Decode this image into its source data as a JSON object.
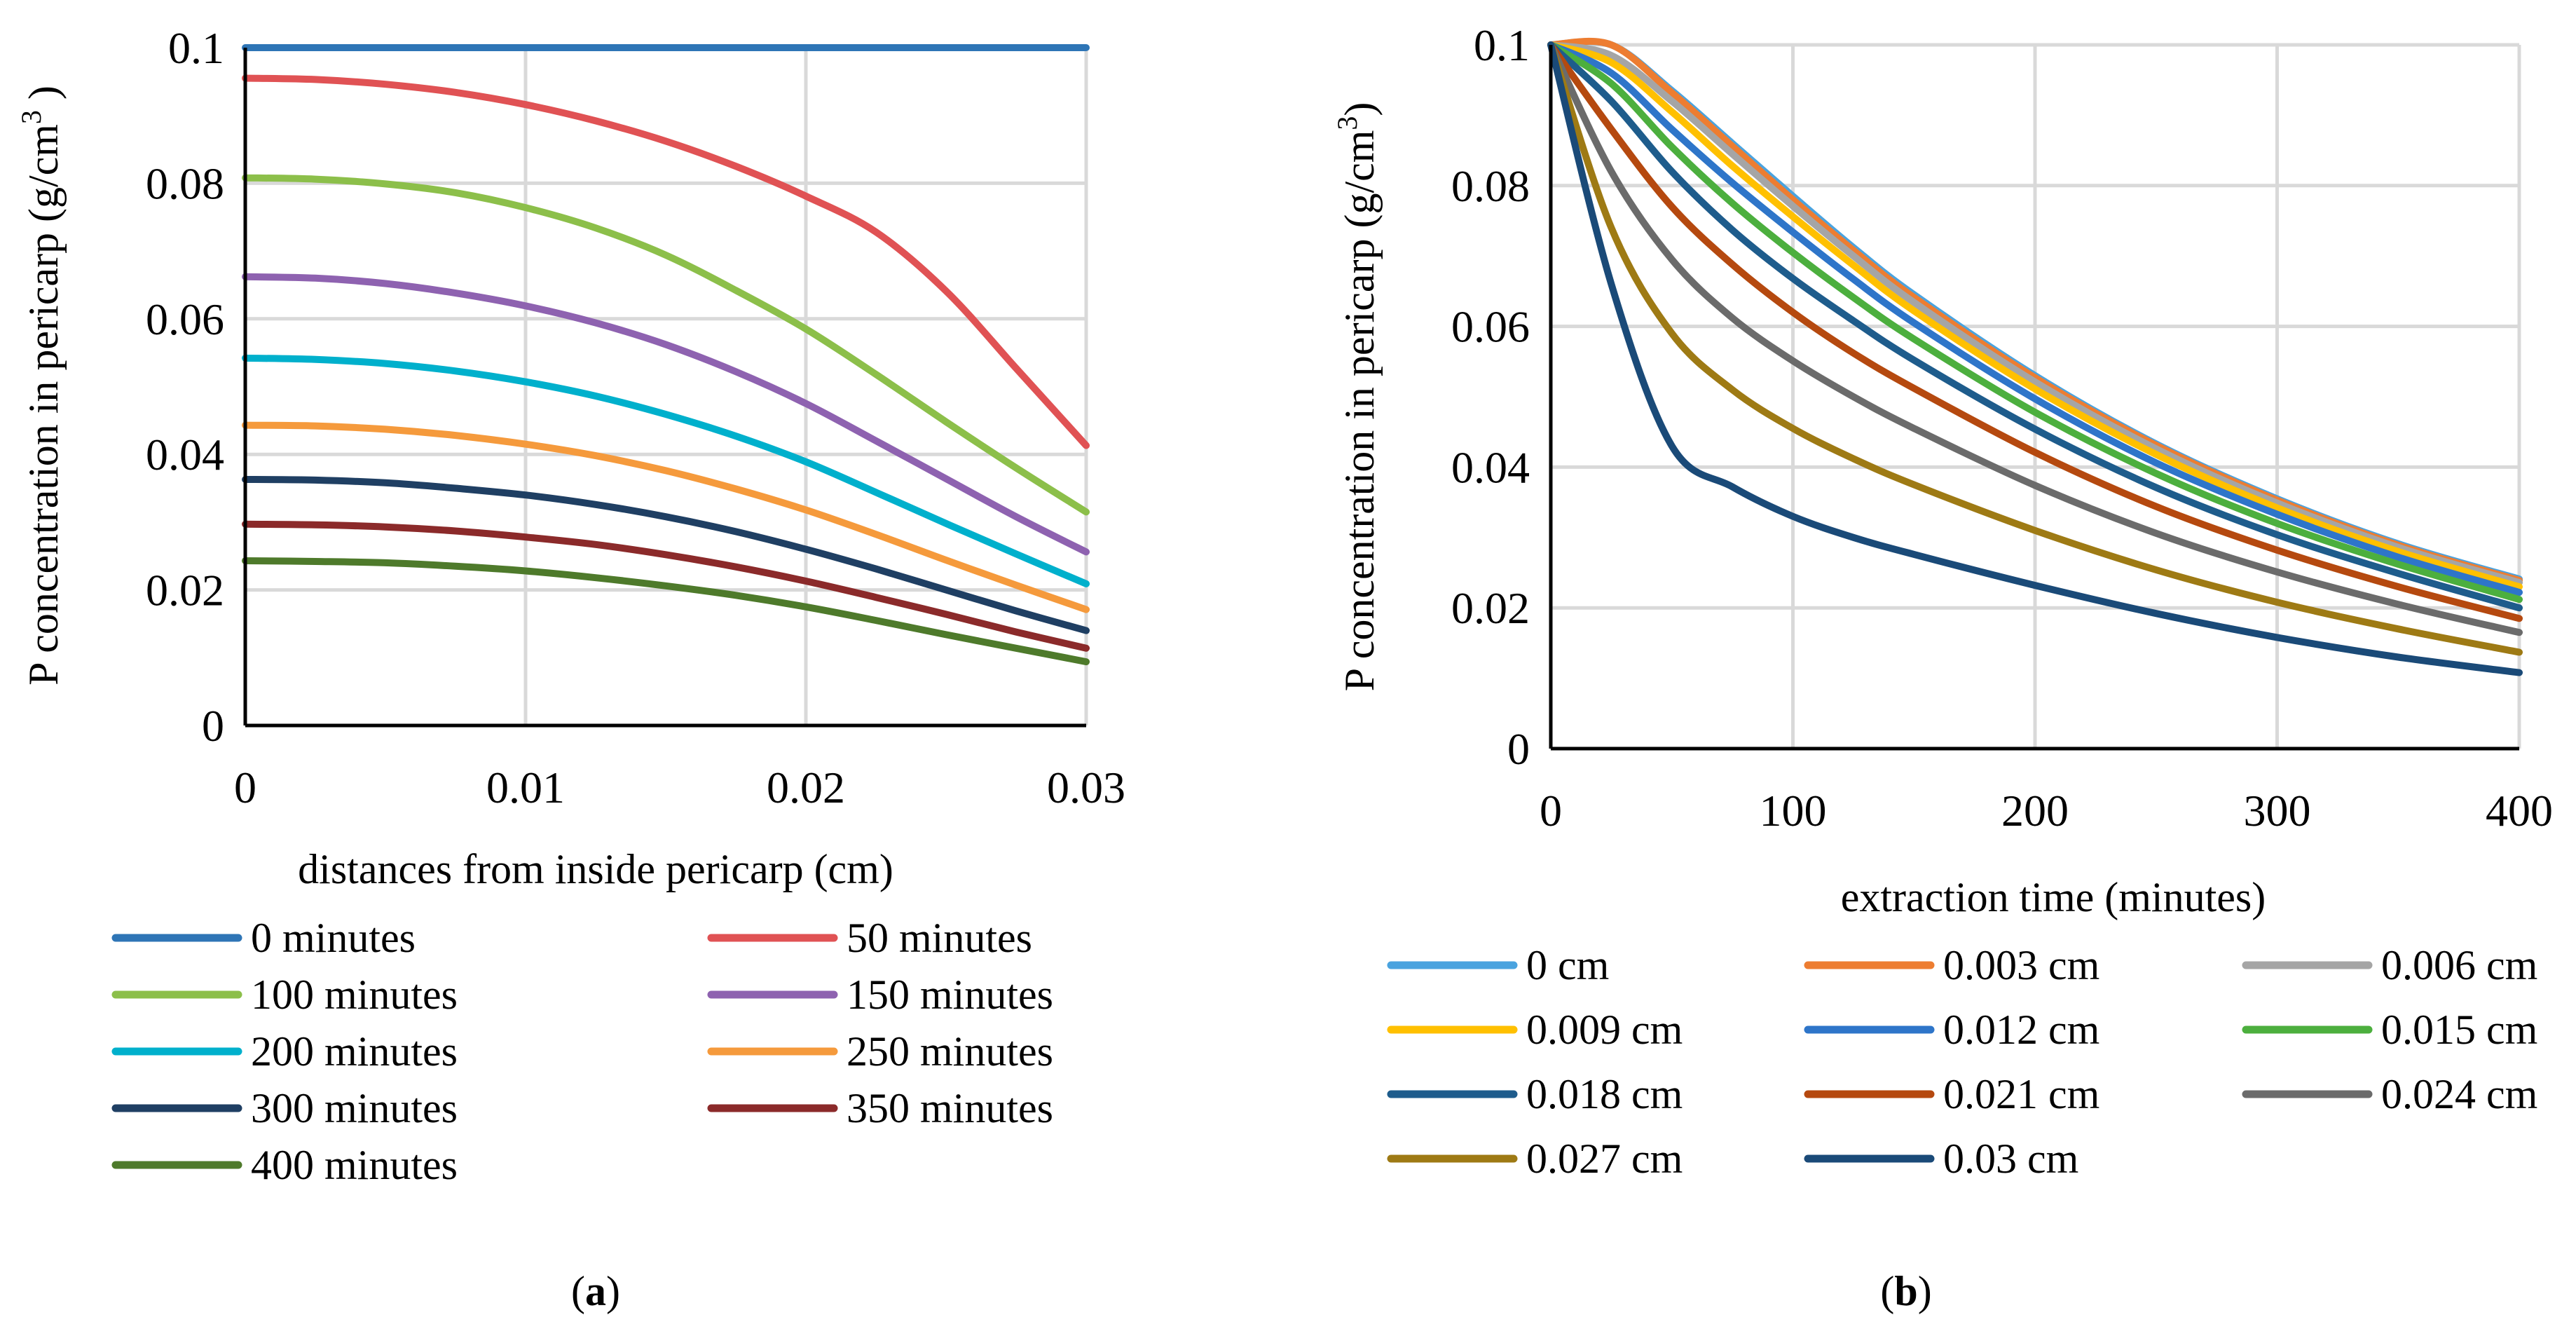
{
  "chart_data": [
    {
      "id": "a",
      "type": "line",
      "caption_open": "(",
      "caption": "a",
      "caption_close": ")",
      "xlabel": "distances from inside pericarp (cm)",
      "ylabel": "P concentration in pericarp (g/cm",
      "ylabel_sup": "3",
      "ylabel_close": " )",
      "xlim": [
        0,
        0.03
      ],
      "ylim": [
        0,
        0.1
      ],
      "x_ticks": [
        "0",
        "0.01",
        "0.02",
        "0.03"
      ],
      "y_ticks": [
        "0",
        "0.02",
        "0.04",
        "0.06",
        "0.08",
        "0.1"
      ],
      "x": [
        0,
        0.0025,
        0.005,
        0.0075,
        0.01,
        0.0125,
        0.015,
        0.0175,
        0.02,
        0.0225,
        0.025,
        0.0275,
        0.03
      ],
      "series": [
        {
          "name": "0 minutes",
          "color": "#2E75B6",
          "values": [
            0.1,
            0.1,
            0.1,
            0.1,
            0.1,
            0.1,
            0.1,
            0.1,
            0.1,
            0.1,
            0.1,
            0.1,
            0.1
          ]
        },
        {
          "name": "50 minutes",
          "color": "#E05254",
          "values": [
            0.0955,
            0.0953,
            0.0946,
            0.0934,
            0.0916,
            0.0892,
            0.0862,
            0.0825,
            0.0781,
            0.0728,
            0.0641,
            0.0527,
            0.0413
          ]
        },
        {
          "name": "100 minutes",
          "color": "#8CBF4A",
          "values": [
            0.0808,
            0.0806,
            0.0799,
            0.0786,
            0.0764,
            0.0734,
            0.0694,
            0.0642,
            0.0585,
            0.0518,
            0.0448,
            0.038,
            0.0315
          ]
        },
        {
          "name": "150 minutes",
          "color": "#8E62B0",
          "values": [
            0.0662,
            0.066,
            0.0652,
            0.0638,
            0.0619,
            0.0594,
            0.0562,
            0.0522,
            0.0475,
            0.042,
            0.0364,
            0.0308,
            0.0256
          ]
        },
        {
          "name": "200 minutes",
          "color": "#00B0CC",
          "values": [
            0.0542,
            0.054,
            0.0534,
            0.0523,
            0.0507,
            0.0486,
            0.0459,
            0.0427,
            0.0389,
            0.0344,
            0.0298,
            0.0253,
            0.0209
          ]
        },
        {
          "name": "250 minutes",
          "color": "#F59A3C",
          "values": [
            0.0443,
            0.0442,
            0.0437,
            0.0428,
            0.0415,
            0.0398,
            0.0376,
            0.0349,
            0.0318,
            0.0282,
            0.0244,
            0.0207,
            0.0171
          ]
        },
        {
          "name": "300 minutes",
          "color": "#1F3F63",
          "values": [
            0.0363,
            0.0362,
            0.0358,
            0.035,
            0.034,
            0.0326,
            0.0308,
            0.0286,
            0.026,
            0.0231,
            0.02,
            0.0169,
            0.014
          ]
        },
        {
          "name": "350 minutes",
          "color": "#8B2A2A",
          "values": [
            0.0297,
            0.0296,
            0.0293,
            0.0287,
            0.0278,
            0.0267,
            0.0252,
            0.0234,
            0.0213,
            0.0189,
            0.0164,
            0.0138,
            0.0114
          ]
        },
        {
          "name": "400 minutes",
          "color": "#4E7A2B",
          "values": [
            0.0243,
            0.0242,
            0.024,
            0.0235,
            0.0228,
            0.0218,
            0.0206,
            0.0192,
            0.0175,
            0.0155,
            0.0134,
            0.0114,
            0.0094
          ]
        }
      ]
    },
    {
      "id": "b",
      "type": "line",
      "caption_open": "(",
      "caption": "b",
      "caption_close": ")",
      "xlabel": "extraction time (minutes)",
      "ylabel": "P concentration in pericarp (g/cm",
      "ylabel_sup": "3",
      "ylabel_close": ")",
      "xlim": [
        0,
        400
      ],
      "ylim": [
        0,
        0.1
      ],
      "x_ticks": [
        "0",
        "100",
        "200",
        "300",
        "400"
      ],
      "y_ticks": [
        "0",
        "0.02",
        "0.04",
        "0.06",
        "0.08",
        "0.1"
      ],
      "x": [
        0,
        25,
        50,
        75,
        100,
        125,
        150,
        200,
        250,
        300,
        350,
        400
      ],
      "series": [
        {
          "name": "0 cm",
          "color": "#4AA3DF",
          "values": [
            0.1,
            0.1,
            0.0935,
            0.086,
            0.0785,
            0.0712,
            0.0645,
            0.053,
            0.0433,
            0.0355,
            0.0291,
            0.0241
          ]
        },
        {
          "name": "0.003 cm",
          "color": "#ED7D31",
          "values": [
            0.1,
            0.1,
            0.0932,
            0.0856,
            0.078,
            0.0708,
            0.0641,
            0.0527,
            0.0431,
            0.0353,
            0.0289,
            0.0239
          ]
        },
        {
          "name": "0.006 cm",
          "color": "#A5A5A5",
          "values": [
            0.1,
            0.0985,
            0.092,
            0.0845,
            0.0771,
            0.07,
            0.0634,
            0.0521,
            0.0426,
            0.0349,
            0.0286,
            0.0236
          ]
        },
        {
          "name": "0.009 cm",
          "color": "#FFC000",
          "values": [
            0.1,
            0.0975,
            0.0905,
            0.0828,
            0.0756,
            0.0687,
            0.0622,
            0.0511,
            0.0418,
            0.0342,
            0.028,
            0.023
          ]
        },
        {
          "name": "0.012 cm",
          "color": "#2E75C9",
          "values": [
            0.1,
            0.096,
            0.088,
            0.0804,
            0.0734,
            0.0667,
            0.0605,
            0.0497,
            0.0406,
            0.0333,
            0.0272,
            0.0222
          ]
        },
        {
          "name": "0.015 cm",
          "color": "#4CAF3E",
          "values": [
            0.1,
            0.0945,
            0.0855,
            0.0775,
            0.0705,
            0.0641,
            0.0582,
            0.0478,
            0.0391,
            0.032,
            0.0262,
            0.0212
          ]
        },
        {
          "name": "0.018 cm",
          "color": "#1E5C8C",
          "values": [
            0.1,
            0.092,
            0.082,
            0.0737,
            0.0668,
            0.0608,
            0.0552,
            0.0454,
            0.0371,
            0.0304,
            0.0249,
            0.02
          ]
        },
        {
          "name": "0.021 cm",
          "color": "#B5490F",
          "values": [
            0.1,
            0.088,
            0.077,
            0.0688,
            0.062,
            0.0562,
            0.0512,
            0.0421,
            0.0344,
            0.0282,
            0.023,
            0.0185
          ]
        },
        {
          "name": "0.024 cm",
          "color": "#6B6B6B",
          "values": [
            0.1,
            0.082,
            0.0695,
            0.0612,
            0.0551,
            0.05,
            0.0455,
            0.0374,
            0.0306,
            0.0251,
            0.0205,
            0.0165
          ]
        },
        {
          "name": "0.027 cm",
          "color": "#9E7A14",
          "values": [
            0.1,
            0.074,
            0.059,
            0.051,
            0.0455,
            0.0412,
            0.0375,
            0.031,
            0.0254,
            0.0208,
            0.017,
            0.0137
          ]
        },
        {
          "name": "0.03 cm",
          "color": "#1A4A78",
          "values": [
            0.1,
            0.066,
            0.043,
            0.0372,
            0.033,
            0.03,
            0.0276,
            0.0232,
            0.0192,
            0.0158,
            0.013,
            0.0108
          ]
        }
      ]
    }
  ]
}
